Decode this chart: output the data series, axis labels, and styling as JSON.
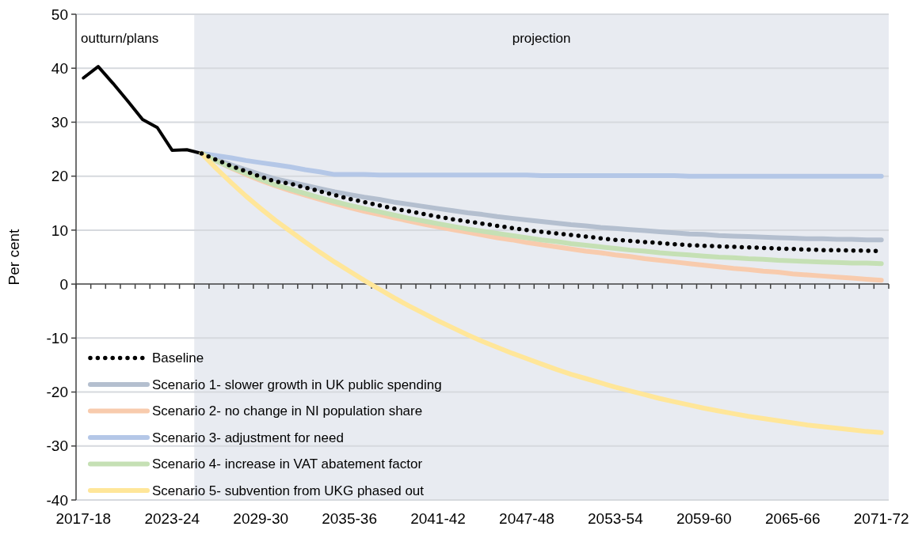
{
  "chart_data": {
    "type": "line",
    "ylabel": "Per cent",
    "categories": [
      "2017-18",
      null,
      null,
      null,
      null,
      null,
      "2023-24",
      null,
      null,
      null,
      null,
      null,
      "2029-30",
      null,
      null,
      null,
      null,
      null,
      "2035-36",
      null,
      null,
      null,
      null,
      null,
      "2041-42",
      null,
      null,
      null,
      null,
      null,
      "2047-48",
      null,
      null,
      null,
      null,
      null,
      "2053-54",
      null,
      null,
      null,
      null,
      null,
      "2059-60",
      null,
      null,
      null,
      null,
      null,
      "2065-66",
      null,
      null,
      null,
      null,
      null,
      "2071-72"
    ],
    "annotations": [
      "outturn/plans",
      "projection"
    ],
    "ylim": [
      -40,
      50
    ],
    "yticks": [
      -40,
      -30,
      -20,
      -10,
      0,
      10,
      20,
      30,
      40,
      50
    ],
    "grid": "y",
    "legend": "bottom left",
    "series": [
      {
        "color": "#000000",
        "line_style": "solid",
        "values": [
          38.2,
          40.3,
          37.2,
          33.9,
          30.5,
          29.0,
          24.8,
          24.9,
          24.2,
          null,
          null,
          null,
          null,
          null,
          null,
          null,
          null,
          null,
          null,
          null,
          null,
          null,
          null,
          null,
          null,
          null,
          null,
          null,
          null,
          null,
          null,
          null,
          null,
          null,
          null,
          null,
          null,
          null,
          null,
          null,
          null,
          null,
          null,
          null,
          null,
          null,
          null,
          null,
          null,
          null,
          null,
          null,
          null,
          null,
          null
        ]
      },
      {
        "name": "Scenario 1- slower growth in UK public spending",
        "color": "#b4bfcf",
        "line_style": "solid",
        "values": [
          null,
          null,
          null,
          null,
          null,
          null,
          null,
          null,
          24.2,
          23.1,
          22.1,
          21.2,
          20.3,
          19.5,
          18.9,
          18.3,
          17.7,
          17.1,
          16.6,
          16.1,
          15.7,
          15.2,
          14.8,
          14.4,
          14.0,
          13.6,
          13.2,
          12.9,
          12.5,
          12.2,
          11.9,
          11.6,
          11.3,
          11.0,
          10.8,
          10.5,
          10.3,
          10.1,
          9.9,
          9.7,
          9.5,
          9.3,
          9.2,
          9.0,
          8.9,
          8.8,
          8.7,
          8.6,
          8.5,
          8.4,
          8.4,
          8.3,
          8.3,
          8.2,
          8.2
        ]
      },
      {
        "name": "Scenario 2- no change in NI population share",
        "color": "#f8cbad",
        "line_style": "solid",
        "values": [
          null,
          null,
          null,
          null,
          null,
          null,
          null,
          null,
          24.2,
          22.8,
          21.5,
          20.3,
          19.2,
          18.2,
          17.3,
          16.5,
          15.7,
          14.9,
          14.2,
          13.5,
          12.9,
          12.3,
          11.7,
          11.1,
          10.6,
          10.1,
          9.6,
          9.1,
          8.6,
          8.2,
          7.7,
          7.3,
          6.9,
          6.5,
          6.1,
          5.8,
          5.4,
          5.1,
          4.7,
          4.4,
          4.1,
          3.8,
          3.5,
          3.2,
          2.9,
          2.7,
          2.4,
          2.2,
          1.9,
          1.7,
          1.5,
          1.3,
          1.1,
          0.9,
          0.7
        ]
      },
      {
        "name": "Scenario 3- adjustment for need",
        "color": "#b4c7e7",
        "line_style": "solid",
        "values": [
          null,
          null,
          null,
          null,
          null,
          null,
          null,
          null,
          24.2,
          23.8,
          23.4,
          22.9,
          22.5,
          22.1,
          21.7,
          21.2,
          20.8,
          20.3,
          20.3,
          20.3,
          20.2,
          20.2,
          20.2,
          20.2,
          20.2,
          20.2,
          20.2,
          20.2,
          20.2,
          20.2,
          20.2,
          20.1,
          20.1,
          20.1,
          20.1,
          20.1,
          20.1,
          20.1,
          20.1,
          20.1,
          20.1,
          20.0,
          20.0,
          20.0,
          20.0,
          20.0,
          20.0,
          20.0,
          20.0,
          20.0,
          20.0,
          20.0,
          20.0,
          20.0,
          20.0
        ]
      },
      {
        "name": "Scenario 4- increase in VAT abatement factor",
        "color": "#c5e0b4",
        "line_style": "solid",
        "values": [
          null,
          null,
          null,
          null,
          null,
          null,
          null,
          null,
          24.2,
          22.8,
          21.6,
          20.5,
          19.4,
          18.4,
          17.6,
          16.8,
          16.0,
          15.3,
          14.6,
          14.0,
          13.4,
          12.8,
          12.2,
          11.7,
          11.2,
          10.7,
          10.2,
          9.8,
          9.4,
          9.0,
          8.6,
          8.2,
          7.9,
          7.5,
          7.2,
          6.9,
          6.6,
          6.3,
          6.1,
          5.8,
          5.6,
          5.4,
          5.2,
          5.0,
          4.9,
          4.7,
          4.6,
          4.4,
          4.3,
          4.2,
          4.1,
          4.0,
          3.9,
          3.9,
          3.8
        ]
      },
      {
        "name": "Scenario 5- subvention from UKG phased out",
        "color": "#ffe699",
        "line_style": "solid",
        "values": [
          null,
          null,
          null,
          null,
          null,
          null,
          null,
          null,
          24.2,
          21.4,
          18.8,
          16.3,
          14.0,
          11.8,
          9.8,
          7.8,
          5.9,
          4.1,
          2.4,
          0.7,
          -0.9,
          -2.5,
          -4.0,
          -5.4,
          -6.8,
          -8.1,
          -9.4,
          -10.6,
          -11.7,
          -12.8,
          -13.8,
          -14.8,
          -15.8,
          -16.7,
          -17.5,
          -18.3,
          -19.1,
          -19.8,
          -20.5,
          -21.2,
          -21.8,
          -22.4,
          -23.0,
          -23.5,
          -24.0,
          -24.5,
          -24.9,
          -25.3,
          -25.7,
          -26.1,
          -26.4,
          -26.7,
          -27.0,
          -27.3,
          -27.5
        ]
      },
      {
        "name": "Baseline",
        "color": "#000000",
        "line_style": "dotted",
        "values": [
          null,
          null,
          null,
          null,
          null,
          null,
          null,
          null,
          24.2,
          23.0,
          21.9,
          20.9,
          19.9,
          19.0,
          18.6,
          17.9,
          17.2,
          16.5,
          15.8,
          15.2,
          14.6,
          14.0,
          13.5,
          13.0,
          12.5,
          12.0,
          11.6,
          11.2,
          10.8,
          10.4,
          10.0,
          9.7,
          9.4,
          9.1,
          8.8,
          8.5,
          8.2,
          8.0,
          7.8,
          7.6,
          7.4,
          7.2,
          7.1,
          7.0,
          6.9,
          6.8,
          6.7,
          6.6,
          6.5,
          6.4,
          6.3,
          6.3,
          6.2,
          6.2,
          6.1
        ]
      }
    ]
  }
}
